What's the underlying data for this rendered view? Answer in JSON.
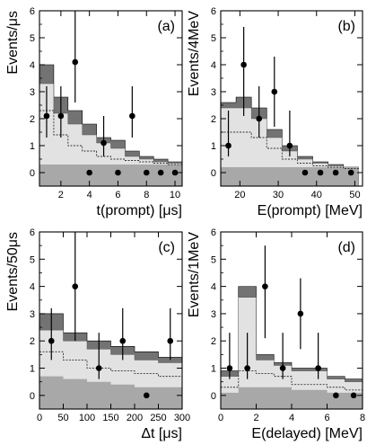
{
  "chart_data": [
    {
      "type": "bar",
      "panel_tag": "(a)",
      "xlabel": "t(prompt) [μs]",
      "ylabel": "Events/μs",
      "xlim": [
        0.5,
        10.5
      ],
      "ylim": [
        -0.5,
        6
      ],
      "xticks": [
        2,
        4,
        6,
        8,
        10
      ],
      "yticks": [
        0,
        1,
        2,
        3,
        4,
        5,
        6
      ],
      "bin_edges": [
        0.5,
        1.5,
        2.5,
        3.5,
        4.5,
        5.5,
        6.5,
        7.5,
        8.5,
        9.5,
        10.5
      ],
      "stack_top": [
        4.0,
        2.8,
        2.3,
        1.8,
        1.3,
        1.2,
        0.8,
        0.6,
        0.5,
        0.4
      ],
      "stack_mid": [
        3.3,
        2.2,
        1.8,
        1.4,
        1.1,
        0.9,
        0.6,
        0.5,
        0.4,
        0.35
      ],
      "line_level": [
        2.3,
        1.4,
        1.0,
        0.8,
        0.6,
        0.5,
        0.45,
        0.4,
        0.35,
        0.3
      ],
      "base_level": [
        0.3,
        0.3,
        0.3,
        0.3,
        0.3,
        0.3,
        0.3,
        0.3,
        0.3,
        0.3
      ],
      "points": [
        {
          "x": 1,
          "y": 2.1,
          "lo": 1.3,
          "hi": 3.2
        },
        {
          "x": 2,
          "y": 2.1,
          "lo": 1.3,
          "hi": 3.2
        },
        {
          "x": 3,
          "y": 4.1,
          "lo": 2.6,
          "hi": 6.1
        },
        {
          "x": 4,
          "y": 0,
          "lo": 0,
          "hi": 0
        },
        {
          "x": 5,
          "y": 1.1,
          "lo": 0.6,
          "hi": 2.1
        },
        {
          "x": 6,
          "y": 0,
          "lo": 0,
          "hi": 0
        },
        {
          "x": 7,
          "y": 2.1,
          "lo": 1.3,
          "hi": 3.2
        },
        {
          "x": 8,
          "y": 0,
          "lo": 0,
          "hi": 0
        },
        {
          "x": 9,
          "y": 0,
          "lo": 0,
          "hi": 0
        },
        {
          "x": 10,
          "y": 0,
          "lo": 0,
          "hi": 0
        }
      ]
    },
    {
      "type": "bar",
      "panel_tag": "(b)",
      "xlabel": "E(prompt) [MeV]",
      "ylabel": "Events/4MeV",
      "xlim": [
        15,
        52
      ],
      "ylim": [
        -0.5,
        6
      ],
      "xticks": [
        20,
        30,
        40,
        50
      ],
      "yticks": [
        0,
        1,
        2,
        3,
        4,
        5,
        6
      ],
      "bin_edges": [
        15,
        19,
        23,
        27,
        31,
        35,
        39,
        43,
        47,
        51
      ],
      "stack_top": [
        2.6,
        2.8,
        2.4,
        1.6,
        1.0,
        0.6,
        0.4,
        0.3,
        0.2
      ],
      "stack_mid": [
        2.4,
        2.4,
        2.0,
        1.3,
        0.8,
        0.5,
        0.35,
        0.25,
        0.2
      ],
      "line_level": [
        1.5,
        1.5,
        1.3,
        0.9,
        0.5,
        0.35,
        0.25,
        0.2,
        0.15
      ],
      "base_level": [
        0.2,
        0.2,
        0.2,
        0.2,
        0.2,
        0.2,
        0.2,
        0.2,
        0.2
      ],
      "points": [
        {
          "x": 17,
          "y": 1,
          "lo": 0.6,
          "hi": 2.3
        },
        {
          "x": 21,
          "y": 4,
          "lo": 2.1,
          "hi": 5.4
        },
        {
          "x": 25,
          "y": 2,
          "lo": 1.3,
          "hi": 3.2
        },
        {
          "x": 29,
          "y": 3,
          "lo": 1.7,
          "hi": 4.3
        },
        {
          "x": 33,
          "y": 1,
          "lo": 0.6,
          "hi": 2.3
        },
        {
          "x": 37,
          "y": 0,
          "lo": 0,
          "hi": 0
        },
        {
          "x": 41,
          "y": 0,
          "lo": 0,
          "hi": 0
        },
        {
          "x": 45,
          "y": 0,
          "lo": 0,
          "hi": 0
        },
        {
          "x": 49,
          "y": 0,
          "lo": 0,
          "hi": 0
        }
      ]
    },
    {
      "type": "bar",
      "panel_tag": "(c)",
      "xlabel": "Δt [μs]",
      "ylabel": "Events/50μs",
      "xlim": [
        0,
        300
      ],
      "ylim": [
        -0.5,
        6
      ],
      "xticks": [
        0,
        50,
        100,
        150,
        200,
        250,
        300
      ],
      "yticks": [
        0,
        1,
        2,
        3,
        4,
        5,
        6
      ],
      "bin_edges": [
        0,
        50,
        100,
        150,
        200,
        250,
        300
      ],
      "stack_top": [
        3.0,
        2.3,
        2.0,
        1.8,
        1.6,
        1.4
      ],
      "stack_mid": [
        2.4,
        2.0,
        1.7,
        1.5,
        1.3,
        1.2
      ],
      "line_level": [
        1.6,
        1.3,
        1.0,
        0.9,
        0.8,
        0.7
      ],
      "base_level": [
        0.7,
        0.6,
        0.5,
        0.4,
        0.3,
        0.3
      ],
      "points": [
        {
          "x": 25,
          "y": 2,
          "lo": 1.3,
          "hi": 3.2
        },
        {
          "x": 75,
          "y": 4,
          "lo": 2.0,
          "hi": 6.0
        },
        {
          "x": 125,
          "y": 1,
          "lo": 0.6,
          "hi": 2.3
        },
        {
          "x": 175,
          "y": 2,
          "lo": 1.3,
          "hi": 3.2
        },
        {
          "x": 225,
          "y": 0,
          "lo": 0,
          "hi": 0
        },
        {
          "x": 275,
          "y": 2,
          "lo": 1.3,
          "hi": 3.2
        }
      ]
    },
    {
      "type": "bar",
      "panel_tag": "(d)",
      "xlabel": "E(delayed) [MeV]",
      "ylabel": "Events/1MeV",
      "xlim": [
        0,
        8
      ],
      "ylim": [
        -0.5,
        6
      ],
      "xticks": [
        0,
        2,
        4,
        6,
        8
      ],
      "yticks": [
        0,
        1,
        2,
        3,
        4,
        5,
        6
      ],
      "bin_edges": [
        0,
        1,
        2,
        3,
        4,
        5,
        6,
        7,
        8
      ],
      "stack_top": [
        0.9,
        4.0,
        1.5,
        1.2,
        1.0,
        1.0,
        0.7,
        0.6
      ],
      "stack_mid": [
        0.7,
        3.6,
        1.3,
        1.1,
        0.9,
        0.9,
        0.6,
        0.5
      ],
      "line_level": [
        0.3,
        0.9,
        0.8,
        0.7,
        0.4,
        0.4,
        0.3,
        0.2
      ],
      "base_level": [
        0.1,
        0.3,
        0.3,
        0.3,
        0.2,
        0.2,
        0.1,
        0.1
      ],
      "points": [
        {
          "x": 0.5,
          "y": 1,
          "lo": 0.6,
          "hi": 2.3
        },
        {
          "x": 1.5,
          "y": 1,
          "lo": 0.6,
          "hi": 2.3
        },
        {
          "x": 2.5,
          "y": 4,
          "lo": 2.1,
          "hi": 5.5
        },
        {
          "x": 3.5,
          "y": 1,
          "lo": 0.6,
          "hi": 2.3
        },
        {
          "x": 4.5,
          "y": 3,
          "lo": 1.7,
          "hi": 4.3
        },
        {
          "x": 5.5,
          "y": 1,
          "lo": 0.6,
          "hi": 2.3
        },
        {
          "x": 6.5,
          "y": 0,
          "lo": 0,
          "hi": 0
        },
        {
          "x": 7.5,
          "y": 0,
          "lo": 0,
          "hi": 0
        }
      ]
    }
  ],
  "colors": {
    "dark_band": "#737373",
    "light_band": "#e2e2e2",
    "base_band": "#a8a8a8",
    "frame": "#000000",
    "point": "#000000"
  }
}
